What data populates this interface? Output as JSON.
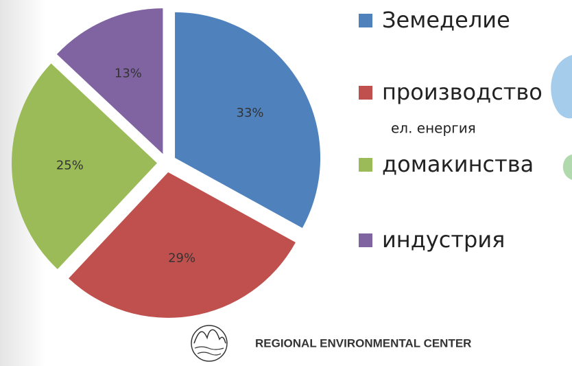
{
  "chart_data": {
    "type": "pie",
    "categories": [
      "Земеделие",
      "производство",
      "домакинства",
      "индустрия"
    ],
    "values": [
      33,
      29,
      25,
      13
    ],
    "value_labels": [
      "33%",
      "29%",
      "25%",
      "13%"
    ],
    "colors": [
      "#4f81bd",
      "#c0504d",
      "#9bbb59",
      "#8064a2"
    ],
    "legend_notes": [
      null,
      "ел. енергия",
      null,
      null
    ],
    "start_angle": 0,
    "direction": "clockwise",
    "exploded": true,
    "legend": "right"
  },
  "footer": {
    "text": "REGIONAL ENVIRONMENTAL CENTER"
  }
}
